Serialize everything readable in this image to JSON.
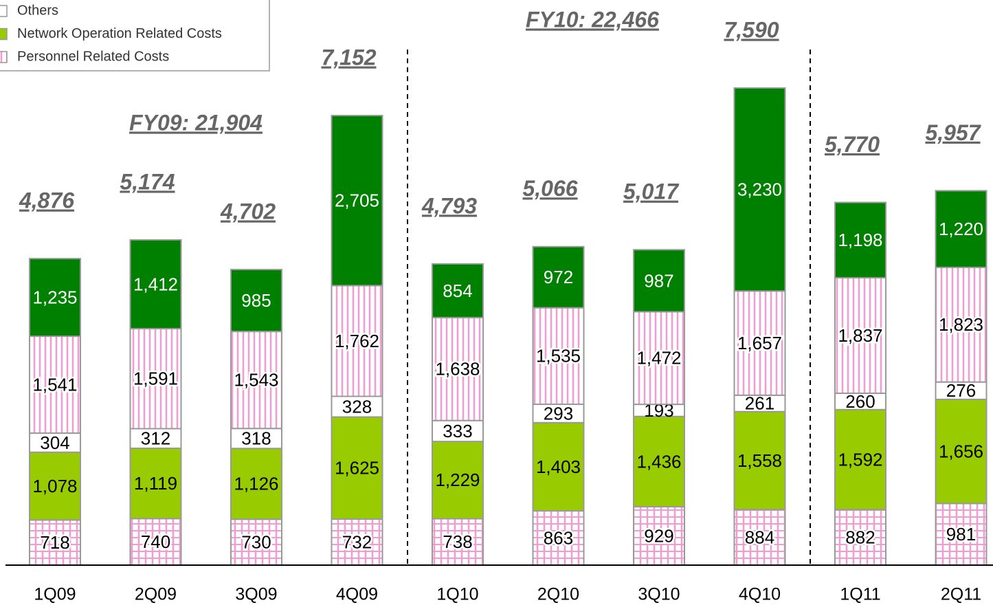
{
  "chart_data": {
    "type": "stacked_bar",
    "categories": [
      "1Q09",
      "2Q09",
      "3Q09",
      "4Q09",
      "1Q10",
      "2Q10",
      "3Q10",
      "4Q10",
      "1Q11",
      "2Q11"
    ],
    "series": [
      {
        "color": "#f49ad0",
        "pattern": "grid",
        "label_color": "#000000",
        "values": [
          718,
          740,
          730,
          732,
          738,
          863,
          929,
          884,
          882,
          981
        ]
      },
      {
        "name": "Network Operation Related Costs",
        "color": "#99cc00",
        "label_color": "#000000",
        "values": [
          1078,
          1119,
          1126,
          1625,
          1229,
          1403,
          1436,
          1558,
          1592,
          1656
        ],
        "value_labels": [
          "1,078",
          "1,119",
          "1,126",
          "1,625",
          "1,229",
          "1,403",
          "1,436",
          "1,558",
          "1,592",
          "1,656"
        ]
      },
      {
        "name": "Others",
        "color": "#ffffff",
        "label_color": "#000000",
        "values": [
          304,
          312,
          318,
          328,
          333,
          293,
          193,
          261,
          260,
          276
        ]
      },
      {
        "name": "Personnel Related Costs",
        "color": "#f49ad0",
        "pattern": "stripes",
        "label_color": "#000000",
        "values": [
          1541,
          1591,
          1543,
          1762,
          1638,
          1535,
          1472,
          1657,
          1837,
          1823
        ],
        "value_labels": [
          "1,541",
          "1,591",
          "1,543",
          "1,762",
          "1,638",
          "1,535",
          "1,472",
          "1,657",
          "1,837",
          "1,823"
        ]
      },
      {
        "color": "#008000",
        "label_color": "#ffffff",
        "values": [
          1235,
          1412,
          985,
          2705,
          854,
          972,
          987,
          3230,
          1198,
          1220
        ],
        "value_labels": [
          "1,235",
          "1,412",
          "985",
          "2,705",
          "854",
          "972",
          "987",
          "3,230",
          "1,198",
          "1,220"
        ]
      }
    ],
    "totals": [
      4876,
      5174,
      4702,
      7152,
      4793,
      5066,
      5017,
      7590,
      5770,
      5957
    ],
    "totals_labels": [
      "4,876",
      "5,174",
      "4,702",
      "7,152",
      "4,793",
      "5,066",
      "5,017",
      "7,590",
      "5,770",
      "5,957"
    ],
    "annotations": [
      "FY09: 21,904",
      "FY10: 22,466"
    ]
  }
}
